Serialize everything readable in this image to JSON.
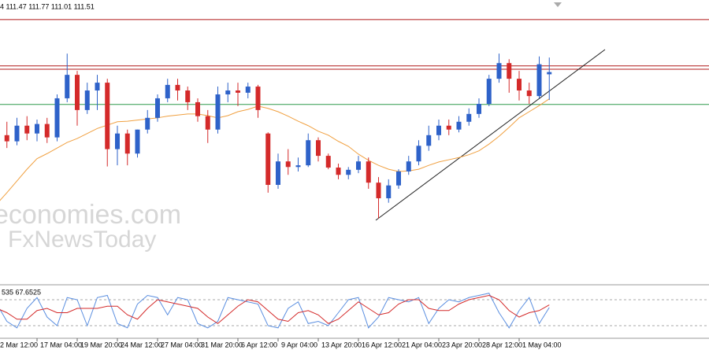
{
  "header": "4 111.47 111.77 111.01 111.51",
  "watermark": [
    "economies.com",
    "FxNewsToday"
  ],
  "chart_data": [
    {
      "type": "candlestick",
      "categories": [
        "2 Mar 12:00",
        null,
        null,
        null,
        "17 Mar 04:00",
        null,
        null,
        null,
        "19 Mar 20:00",
        null,
        null,
        null,
        "24 Mar 12:00",
        null,
        null,
        null,
        "27 Mar 04:00",
        null,
        null,
        null,
        "31 Mar 20:00",
        null,
        null,
        null,
        "6 Apr 12:00",
        null,
        null,
        null,
        "9 Apr 04:00",
        null,
        null,
        null,
        "13 Apr 20:00",
        null,
        null,
        null,
        "16 Apr 12:00",
        null,
        null,
        null,
        "21 Apr 04:00",
        null,
        null,
        null,
        "23 Apr 20:00",
        null,
        null,
        null,
        "28 Apr 12:00",
        null,
        null,
        null,
        "1 May 04:00",
        null,
        null,
        null
      ],
      "open": [
        110.29,
        110.38,
        110.27,
        110.55,
        110.41,
        110.58,
        110.34,
        111.04,
        111.46,
        110.83,
        111.18,
        111.32,
        110.13,
        110.41,
        110.05,
        110.48,
        110.69,
        111.04,
        111.28,
        111.18,
        110.97,
        110.72,
        110.48,
        111.11,
        111.18,
        111.14,
        111.25,
        110.41,
        109.49,
        109.91,
        109.81,
        109.84,
        110.29,
        110.01,
        109.8,
        109.67,
        109.76,
        109.91,
        109.53,
        109.25,
        109.48,
        109.73,
        109.91,
        110.19,
        110.38,
        110.55,
        110.48,
        110.62,
        110.76,
        110.94,
        111.39,
        111.67,
        111.39,
        111.18,
        111.08,
        111.47
      ],
      "high": [
        110.48,
        110.62,
        110.69,
        110.72,
        110.66,
        110.69,
        111.11,
        111.84,
        111.53,
        111.32,
        111.46,
        111.39,
        110.55,
        110.48,
        110.48,
        110.83,
        111.11,
        111.39,
        111.39,
        111.25,
        111.04,
        110.83,
        111.25,
        111.32,
        111.32,
        111.32,
        111.28,
        110.43,
        110.05,
        110.13,
        109.98,
        110.41,
        110.34,
        110.05,
        109.87,
        109.81,
        110.01,
        109.98,
        109.63,
        109.59,
        109.77,
        110.01,
        110.29,
        110.55,
        110.66,
        110.66,
        110.72,
        110.86,
        111.04,
        111.46,
        111.84,
        111.74,
        111.53,
        111.32,
        111.79,
        111.77
      ],
      "low": [
        110.13,
        110.15,
        110.2,
        110.29,
        110.27,
        110.24,
        110.27,
        110.97,
        110.55,
        110.76,
        110.83,
        109.82,
        109.84,
        109.84,
        109.98,
        110.41,
        110.62,
        110.97,
        111.0,
        110.83,
        110.62,
        110.24,
        110.41,
        110.97,
        110.9,
        111.04,
        110.69,
        109.35,
        109.42,
        109.67,
        109.73,
        109.81,
        109.91,
        109.77,
        109.59,
        109.59,
        109.7,
        109.42,
        108.89,
        109.17,
        109.42,
        109.67,
        109.84,
        110.1,
        110.29,
        110.38,
        110.43,
        110.55,
        110.69,
        110.9,
        111.32,
        111.14,
        111.0,
        110.94,
        111.04,
        111.01
      ],
      "close": [
        110.38,
        110.27,
        110.55,
        110.41,
        110.58,
        110.34,
        111.04,
        111.46,
        110.83,
        111.18,
        111.32,
        110.13,
        110.41,
        110.05,
        110.48,
        110.69,
        111.04,
        111.28,
        111.18,
        110.97,
        110.72,
        110.48,
        111.11,
        111.18,
        111.14,
        111.25,
        110.83,
        109.49,
        109.91,
        109.81,
        109.84,
        110.29,
        110.01,
        109.8,
        109.67,
        109.76,
        109.91,
        109.53,
        109.25,
        109.48,
        109.73,
        109.91,
        110.19,
        110.38,
        110.55,
        110.48,
        110.62,
        110.76,
        110.94,
        111.39,
        111.67,
        111.39,
        111.18,
        111.08,
        111.65,
        111.51
      ],
      "up_color": "#2e62c9",
      "down_color": "#d42a2a",
      "overlay": {
        "color": "#f0a040",
        "values": [
          109.15,
          109.35,
          109.56,
          109.77,
          109.96,
          110.05,
          110.15,
          110.25,
          110.32,
          110.41,
          110.5,
          110.56,
          110.62,
          110.63,
          110.65,
          110.67,
          110.69,
          110.72,
          110.74,
          110.76,
          110.76,
          110.73,
          110.69,
          110.73,
          110.8,
          110.84,
          110.9,
          110.86,
          110.8,
          110.72,
          110.63,
          110.55,
          110.45,
          110.38,
          110.27,
          110.18,
          110.04,
          109.93,
          109.84,
          109.77,
          109.73,
          109.74,
          109.77,
          109.84,
          109.9,
          109.94,
          109.98,
          110.03,
          110.1,
          110.22,
          110.36,
          110.52,
          110.69,
          110.8,
          110.91,
          111.03
        ]
      },
      "levels": [
        {
          "value": 112.45,
          "color": "#b01818"
        },
        {
          "value": 111.62,
          "color": "#b01818"
        },
        {
          "value": 111.56,
          "color": "#b01818"
        },
        {
          "value": 110.93,
          "color": "#2e9a4a"
        }
      ],
      "ylim": [
        107.8,
        112.8
      ]
    },
    {
      "type": "line",
      "label": "535 67.6525",
      "series": [
        {
          "color": "#5a8ee0",
          "values": [
            70,
            30,
            15,
            60,
            85,
            40,
            20,
            85,
            80,
            20,
            85,
            90,
            25,
            15,
            70,
            90,
            85,
            45,
            85,
            80,
            25,
            15,
            30,
            85,
            80,
            75,
            70,
            20,
            15,
            60,
            75,
            25,
            30,
            20,
            50,
            80,
            85,
            15,
            40,
            85,
            80,
            75,
            85,
            25,
            60,
            80,
            75,
            85,
            90,
            95,
            50,
            15,
            55,
            85,
            25,
            62
          ]
        },
        {
          "color": "#d42a2a",
          "values": [
            60,
            50,
            35,
            35,
            55,
            60,
            50,
            50,
            60,
            60,
            60,
            65,
            65,
            45,
            35,
            60,
            80,
            75,
            70,
            65,
            60,
            40,
            25,
            45,
            65,
            80,
            75,
            55,
            35,
            30,
            50,
            55,
            45,
            25,
            35,
            55,
            75,
            60,
            45,
            50,
            70,
            80,
            80,
            60,
            55,
            55,
            70,
            80,
            85,
            90,
            80,
            55,
            40,
            50,
            55,
            68
          ]
        }
      ],
      "levels": [
        80,
        20
      ],
      "ylim": [
        0,
        100
      ]
    }
  ]
}
